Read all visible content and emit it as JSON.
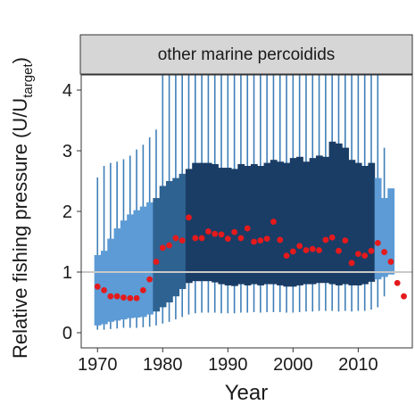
{
  "chart_data": {
    "type": "boxplot",
    "facet_title": "other marine percoidids",
    "xlabel": "Year",
    "ylabel_main": "Relative fishing pressure (U/U",
    "ylabel_subscript": "target",
    "ylabel_close": ")",
    "xlim": [
      1967.5,
      2018.3
    ],
    "ylim": [
      -0.25,
      4.25
    ],
    "x_ticks": [
      1970,
      1980,
      1990,
      2000,
      2010
    ],
    "y_ticks": [
      0,
      1,
      2,
      3,
      4
    ],
    "reference_line": 1,
    "years": [
      1970,
      1971,
      1972,
      1973,
      1974,
      1975,
      1976,
      1977,
      1978,
      1979,
      1980,
      1981,
      1982,
      1983,
      1984,
      1985,
      1986,
      1987,
      1988,
      1989,
      1990,
      1991,
      1992,
      1993,
      1994,
      1995,
      1996,
      1997,
      1998,
      1999,
      2000,
      2001,
      2002,
      2003,
      2004,
      2005,
      2006,
      2007,
      2008,
      2009,
      2010,
      2011,
      2012,
      2013,
      2014,
      2015
    ],
    "q1": [
      0.12,
      0.14,
      0.18,
      0.2,
      0.22,
      0.24,
      0.25,
      0.26,
      0.3,
      0.35,
      0.42,
      0.5,
      0.6,
      0.72,
      0.82,
      0.85,
      0.85,
      0.85,
      0.83,
      0.8,
      0.78,
      0.77,
      0.8,
      0.78,
      0.8,
      0.78,
      0.8,
      0.8,
      0.78,
      0.76,
      0.76,
      0.78,
      0.8,
      0.8,
      0.82,
      0.82,
      0.8,
      0.78,
      0.8,
      0.78,
      0.78,
      0.8,
      0.84,
      0.88,
      0.92,
      0.96
    ],
    "q3": [
      1.28,
      1.35,
      1.55,
      1.72,
      1.85,
      1.95,
      2.02,
      2.08,
      2.15,
      2.22,
      2.42,
      2.5,
      2.55,
      2.62,
      2.7,
      2.8,
      2.8,
      2.8,
      2.78,
      2.72,
      2.72,
      2.7,
      2.78,
      2.75,
      2.78,
      2.75,
      2.8,
      2.85,
      2.82,
      2.8,
      2.88,
      2.9,
      2.82,
      2.88,
      2.92,
      2.9,
      3.15,
      3.12,
      3.05,
      2.85,
      2.8,
      2.75,
      2.8,
      2.55,
      2.22,
      2.38
    ],
    "whisker_low": [
      0.05,
      0.05,
      0.06,
      0.07,
      0.08,
      0.08,
      0.08,
      0.09,
      0.1,
      0.12,
      0.15,
      0.18,
      0.22,
      0.26,
      0.3,
      0.32,
      0.33,
      0.33,
      0.33,
      0.32,
      0.32,
      0.32,
      0.33,
      0.33,
      0.34,
      0.33,
      0.34,
      0.34,
      0.34,
      0.33,
      0.33,
      0.34,
      0.35,
      0.35,
      0.36,
      0.36,
      0.36,
      0.35,
      0.36,
      0.35,
      0.36,
      0.36,
      0.38,
      0.42,
      0.6,
      null
    ],
    "whisker_high": [
      2.56,
      2.75,
      2.8,
      2.82,
      2.86,
      2.92,
      3.02,
      3.1,
      3.22,
      3.35,
      4.25,
      4.25,
      4.25,
      4.25,
      4.25,
      4.25,
      4.25,
      4.25,
      4.25,
      4.25,
      4.25,
      4.25,
      4.25,
      4.25,
      4.25,
      4.25,
      4.25,
      4.25,
      4.25,
      4.25,
      4.25,
      4.25,
      4.25,
      4.25,
      4.25,
      4.25,
      4.25,
      4.25,
      4.25,
      4.25,
      4.25,
      4.25,
      4.25,
      4.25,
      3.05,
      null
    ],
    "point_years": [
      1970,
      1971,
      1972,
      1973,
      1974,
      1975,
      1976,
      1977,
      1978,
      1979,
      1980,
      1981,
      1982,
      1983,
      1984,
      1985,
      1986,
      1987,
      1988,
      1989,
      1990,
      1991,
      1992,
      1993,
      1994,
      1995,
      1996,
      1997,
      1998,
      1999,
      2000,
      2001,
      2002,
      2003,
      2004,
      2005,
      2006,
      2007,
      2008,
      2009,
      2010,
      2011,
      2012,
      2013,
      2014,
      2015,
      2016,
      2017
    ],
    "point_values": [
      0.76,
      0.7,
      0.6,
      0.6,
      0.58,
      0.57,
      0.57,
      0.7,
      0.88,
      1.17,
      1.4,
      1.44,
      1.56,
      1.52,
      1.9,
      1.56,
      1.56,
      1.67,
      1.63,
      1.62,
      1.55,
      1.66,
      1.56,
      1.72,
      1.5,
      1.52,
      1.55,
      1.83,
      1.53,
      1.27,
      1.34,
      1.43,
      1.36,
      1.38,
      1.36,
      1.53,
      1.57,
      1.35,
      1.52,
      1.15,
      1.3,
      1.27,
      1.35,
      1.48,
      1.33,
      1.17,
      0.82,
      0.6
    ],
    "colors": {
      "box_light": "#5c9bd5",
      "box_mid": "#2e6291",
      "box_dark": "#1a3d66",
      "whisker": "#3f7fb8",
      "point": "#e41a1c",
      "ref_line": "#c8c8c8",
      "panel_bg": "#ffffff",
      "strip_bg": "#d6d6d6",
      "frame": "#333333"
    }
  }
}
